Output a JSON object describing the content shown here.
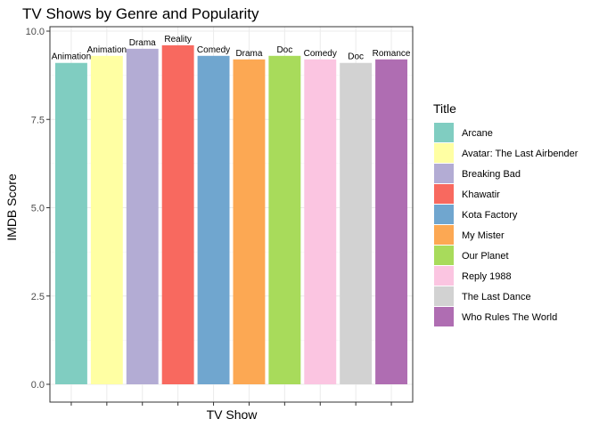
{
  "chart_data": {
    "type": "bar",
    "title": "TV Shows by Genre and Popularity",
    "xlabel": "TV Show",
    "ylabel": "IMDB Score",
    "ylim": [
      0,
      10
    ],
    "yticks": [
      "0.0",
      "2.5",
      "5.0",
      "7.5",
      "10.0"
    ],
    "ytick_values": [
      0,
      2.5,
      5,
      7.5,
      10
    ],
    "x_tick_labels_visible": false,
    "grid": true,
    "legend": {
      "title": "Title",
      "position": "right"
    },
    "categories": [
      "Arcane",
      "Avatar: The Last Airbender",
      "Breaking Bad",
      "Khawatir",
      "Kota Factory",
      "My Mister",
      "Our Planet",
      "Reply 1988",
      "The Last Dance",
      "Who Rules The World"
    ],
    "values": [
      9.1,
      9.3,
      9.5,
      9.6,
      9.3,
      9.2,
      9.3,
      9.2,
      9.1,
      9.2
    ],
    "genres": [
      "Animation",
      "Animation",
      "Drama",
      "Reality",
      "Comedy",
      "Drama",
      "Doc",
      "Comedy",
      "Doc",
      "Romance"
    ],
    "colors": [
      "#80CDC1",
      "#FFFFA3",
      "#B3ACD4",
      "#F8695F",
      "#70A6CF",
      "#FCA853",
      "#A8DB5B",
      "#FBC5E1",
      "#D2D2D2",
      "#AF6DB2"
    ]
  }
}
